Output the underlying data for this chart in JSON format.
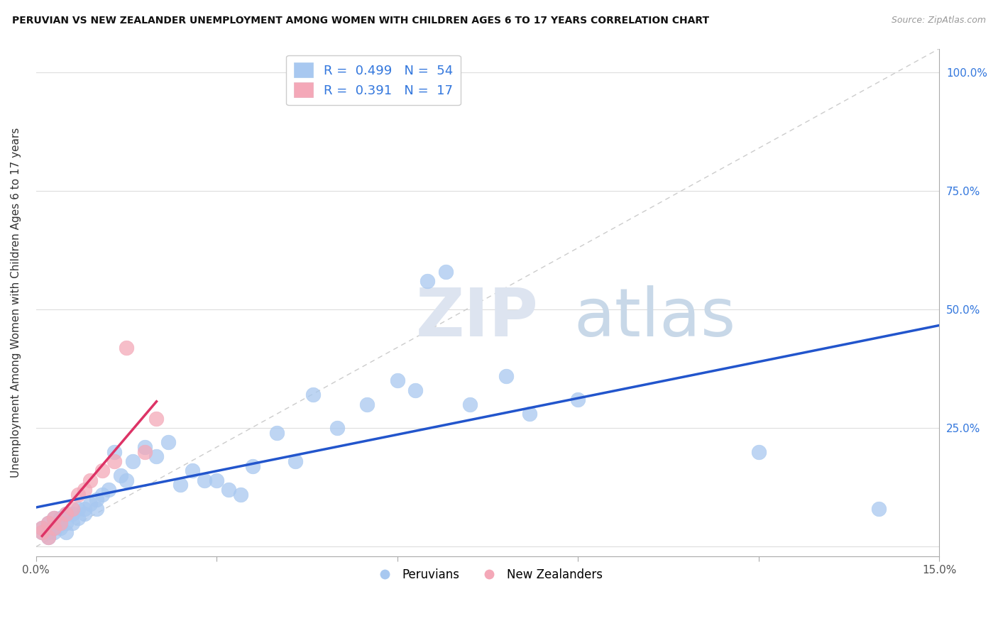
{
  "title": "PERUVIAN VS NEW ZEALANDER UNEMPLOYMENT AMONG WOMEN WITH CHILDREN AGES 6 TO 17 YEARS CORRELATION CHART",
  "source": "Source: ZipAtlas.com",
  "ylabel": "Unemployment Among Women with Children Ages 6 to 17 years",
  "xlim": [
    0.0,
    0.15
  ],
  "ylim": [
    -0.02,
    1.05
  ],
  "xticks": [
    0.0,
    0.03,
    0.06,
    0.09,
    0.12,
    0.15
  ],
  "xticklabels": [
    "0.0%",
    "",
    "",
    "",
    "",
    "15.0%"
  ],
  "ytick_positions": [
    0.0,
    0.25,
    0.5,
    0.75,
    1.0
  ],
  "yticklabels_right": [
    "",
    "25.0%",
    "50.0%",
    "75.0%",
    "100.0%"
  ],
  "peruvians_R": 0.499,
  "peruvians_N": 54,
  "nz_R": 0.391,
  "nz_N": 17,
  "peruvian_color": "#a8c8f0",
  "nz_color": "#f4a8b8",
  "peruvian_line_color": "#2255cc",
  "nz_line_color": "#dd3366",
  "diagonal_color": "#cccccc",
  "legend_R_color": "#3377dd",
  "background_color": "#ffffff",
  "peruvians_x": [
    0.001,
    0.001,
    0.002,
    0.002,
    0.002,
    0.003,
    0.003,
    0.003,
    0.004,
    0.004,
    0.004,
    0.005,
    0.005,
    0.005,
    0.006,
    0.006,
    0.007,
    0.007,
    0.008,
    0.008,
    0.009,
    0.01,
    0.01,
    0.011,
    0.012,
    0.013,
    0.014,
    0.015,
    0.016,
    0.018,
    0.02,
    0.022,
    0.024,
    0.026,
    0.028,
    0.03,
    0.032,
    0.034,
    0.036,
    0.04,
    0.043,
    0.046,
    0.05,
    0.055,
    0.06,
    0.063,
    0.065,
    0.068,
    0.072,
    0.078,
    0.082,
    0.09,
    0.12,
    0.14
  ],
  "peruvians_y": [
    0.03,
    0.04,
    0.02,
    0.05,
    0.03,
    0.04,
    0.06,
    0.03,
    0.05,
    0.04,
    0.06,
    0.03,
    0.05,
    0.07,
    0.05,
    0.07,
    0.06,
    0.08,
    0.07,
    0.08,
    0.09,
    0.1,
    0.08,
    0.11,
    0.12,
    0.2,
    0.15,
    0.14,
    0.18,
    0.21,
    0.19,
    0.22,
    0.13,
    0.16,
    0.14,
    0.14,
    0.12,
    0.11,
    0.17,
    0.24,
    0.18,
    0.32,
    0.25,
    0.3,
    0.35,
    0.33,
    0.56,
    0.58,
    0.3,
    0.36,
    0.28,
    0.31,
    0.2,
    0.08
  ],
  "nz_x": [
    0.001,
    0.001,
    0.002,
    0.002,
    0.003,
    0.003,
    0.004,
    0.005,
    0.006,
    0.007,
    0.008,
    0.009,
    0.011,
    0.013,
    0.015,
    0.018,
    0.02
  ],
  "nz_y": [
    0.03,
    0.04,
    0.02,
    0.05,
    0.04,
    0.06,
    0.05,
    0.07,
    0.08,
    0.11,
    0.12,
    0.14,
    0.16,
    0.18,
    0.42,
    0.2,
    0.27
  ]
}
